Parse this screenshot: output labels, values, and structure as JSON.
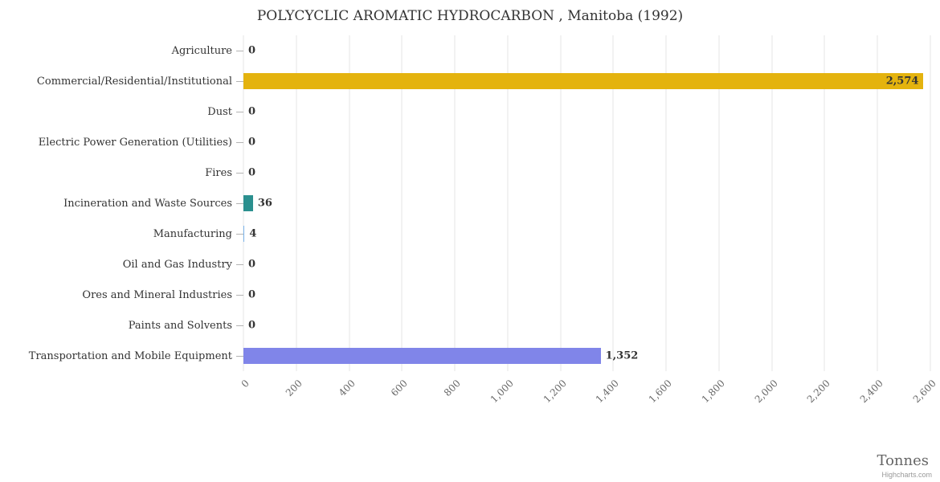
{
  "credit": "Highcharts.com",
  "chart_data": {
    "type": "bar",
    "title": "POLYCYCLIC AROMATIC HYDROCARBON , Manitoba (1992)",
    "xlabel": "Tonnes",
    "xlim": [
      0,
      2600
    ],
    "grid": true,
    "legend": false,
    "categories": [
      "Agriculture",
      "Commercial/Residential/Institutional",
      "Dust",
      "Electric Power Generation (Utilities)",
      "Fires",
      "Incineration and Waste Sources",
      "Manufacturing",
      "Oil and Gas Industry",
      "Ores and Mineral Industries",
      "Paints and Solvents",
      "Transportation and Mobile Equipment"
    ],
    "values": [
      0,
      2574,
      0,
      0,
      0,
      36,
      4,
      0,
      0,
      0,
      1352
    ],
    "value_labels": [
      "0",
      "2,574",
      "0",
      "0",
      "0",
      "36",
      "4",
      "0",
      "0",
      "0",
      "1,352"
    ],
    "bar_colors": [
      "#7cb5ec",
      "#e4b30e",
      "#7cb5ec",
      "#7cb5ec",
      "#7cb5ec",
      "#2b908f",
      "#7cb5ec",
      "#7cb5ec",
      "#7cb5ec",
      "#7cb5ec",
      "#8085e9"
    ],
    "ticks": [
      {
        "value": 0,
        "label": "0"
      },
      {
        "value": 200,
        "label": "200"
      },
      {
        "value": 400,
        "label": "400"
      },
      {
        "value": 600,
        "label": "600"
      },
      {
        "value": 800,
        "label": "800"
      },
      {
        "value": 1000,
        "label": "1,000"
      },
      {
        "value": 1200,
        "label": "1,200"
      },
      {
        "value": 1400,
        "label": "1,400"
      },
      {
        "value": 1600,
        "label": "1,600"
      },
      {
        "value": 1800,
        "label": "1,800"
      },
      {
        "value": 2000,
        "label": "2,000"
      },
      {
        "value": 2200,
        "label": "2,200"
      },
      {
        "value": 2400,
        "label": "2,400"
      },
      {
        "value": 2600,
        "label": "2,600"
      }
    ],
    "colors": {
      "grid_line": "#e6e6e6",
      "title_text": "#333333",
      "category_text": "#333333",
      "value_text": "#333333",
      "tick_text": "#666666",
      "axis_title_text": "#666666",
      "credit_text": "#999999"
    }
  }
}
